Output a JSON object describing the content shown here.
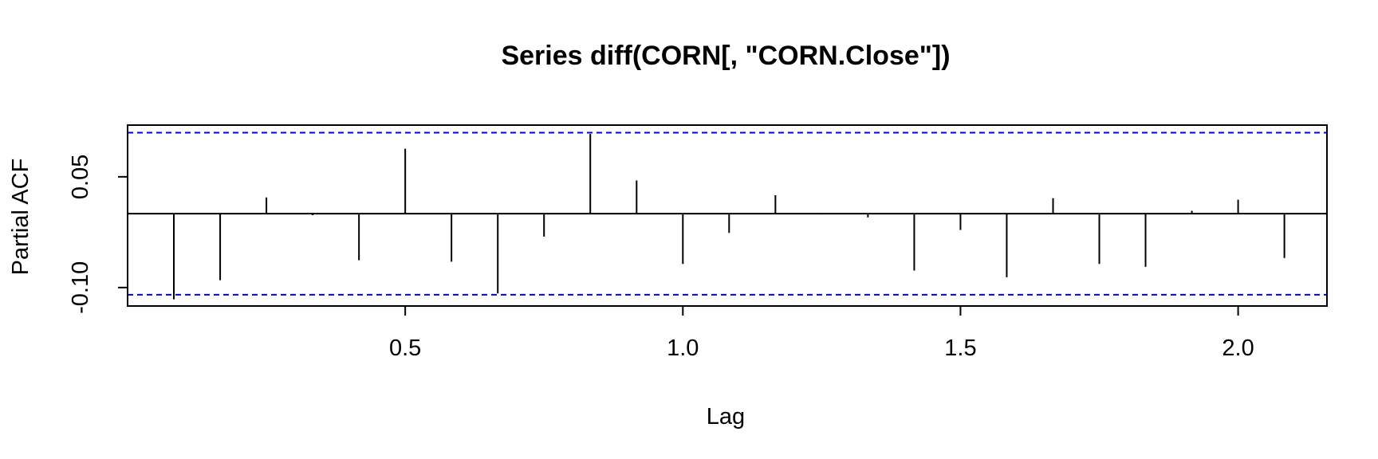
{
  "chart_data": {
    "type": "bar",
    "title": "Series  diff(CORN[, \"CORN.Close\"])",
    "xlabel": "Lag",
    "ylabel": "Partial ACF",
    "xlim": [
      0.0,
      2.16
    ],
    "ylim": [
      -0.125,
      0.12
    ],
    "x_ticks": [
      0.5,
      1.0,
      1.5,
      2.0
    ],
    "x_tick_labels": [
      "0.5",
      "1.0",
      "1.5",
      "2.0"
    ],
    "y_ticks": [
      0.05,
      -0.1
    ],
    "y_tick_labels": [
      "0.05",
      "-0.10"
    ],
    "x": [
      0.0833,
      0.1667,
      0.25,
      0.3333,
      0.4167,
      0.5,
      0.5833,
      0.6667,
      0.75,
      0.8333,
      0.9167,
      1.0,
      1.0833,
      1.1667,
      1.25,
      1.3333,
      1.4167,
      1.5,
      1.5833,
      1.6667,
      1.75,
      1.8333,
      1.9167,
      2.0,
      2.0833
    ],
    "values": [
      -0.116,
      -0.09,
      0.022,
      -0.002,
      -0.063,
      0.088,
      -0.065,
      -0.108,
      -0.031,
      0.108,
      0.045,
      -0.068,
      -0.026,
      0.025,
      -0.001,
      -0.005,
      -0.077,
      -0.022,
      -0.086,
      0.021,
      -0.068,
      -0.072,
      0.004,
      0.019,
      -0.06
    ],
    "confidence_bounds": [
      0.1098,
      -0.1098
    ],
    "bound_color": "#0000EE",
    "bar_color": "#000000",
    "grid": false,
    "legend": "none"
  }
}
